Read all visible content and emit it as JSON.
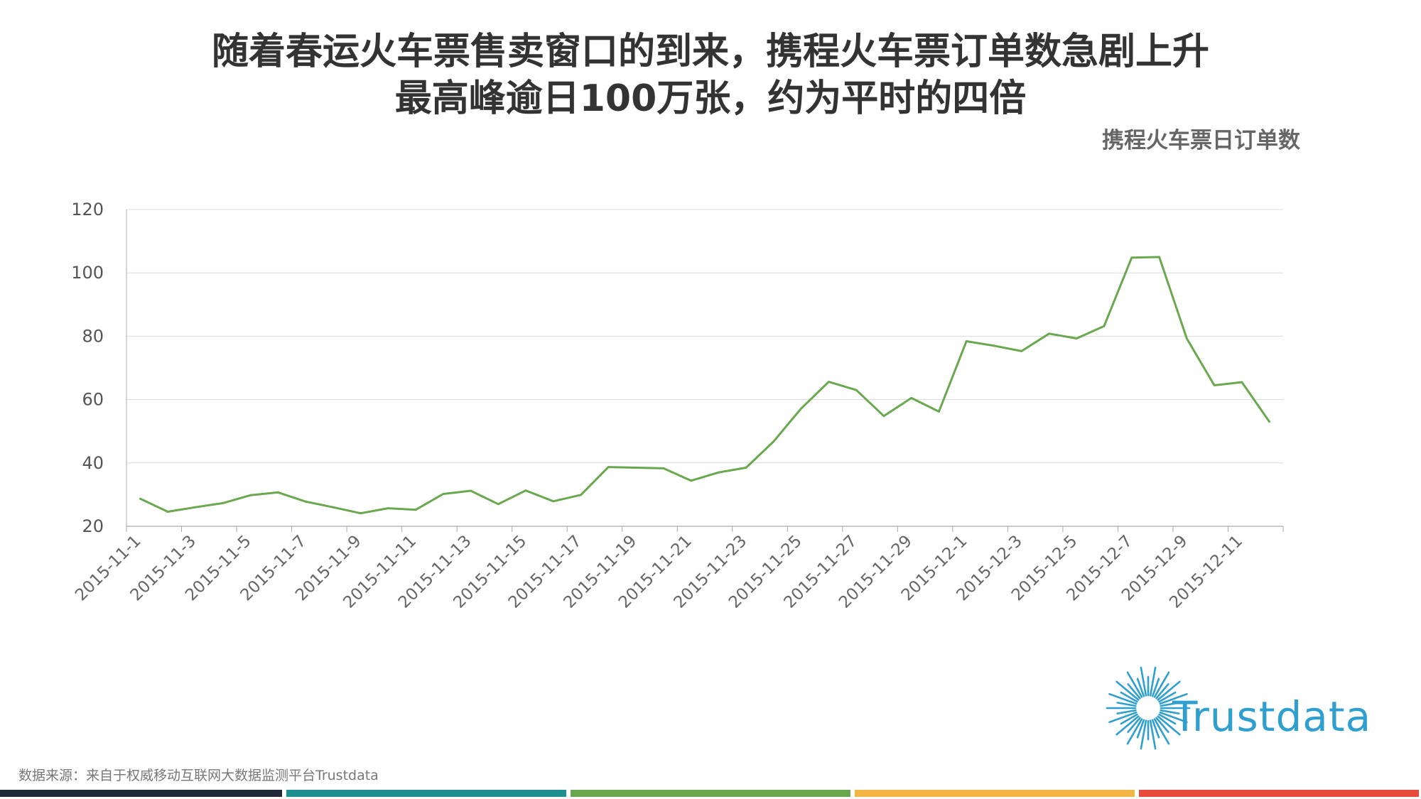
{
  "title": {
    "line1": "随着春运火车票售卖窗口的到来，携程火车票订单数急剧上升",
    "line2": "最高峰逾日100万张，约为平时的四倍"
  },
  "source": "数据来源：来自于权威移动互联网大数据监测平台Trustdata",
  "logo": {
    "text": "Trustdata",
    "color": "#2f9fd0"
  },
  "footer_colors": [
    "#1e2a3a",
    "#1f8e8f",
    "#6aa84f",
    "#f2b442",
    "#e64b3c"
  ],
  "chart_data": {
    "type": "line",
    "title": "携程火车票日订单数",
    "ylim": [
      20,
      120
    ],
    "yticks": [
      20,
      40,
      60,
      80,
      100,
      120
    ],
    "grid": true,
    "series_color": "#6aa84f",
    "xtick_labels": [
      "2015-11-1",
      "2015-11-3",
      "2015-11-5",
      "2015-11-7",
      "2015-11-9",
      "2015-11-11",
      "2015-11-13",
      "2015-11-15",
      "2015-11-17",
      "2015-11-19",
      "2015-11-21",
      "2015-11-23",
      "2015-11-25",
      "2015-11-27",
      "2015-11-29",
      "2015-12-1",
      "2015-12-3",
      "2015-12-5",
      "2015-12-7",
      "2015-12-9",
      "2015-12-11"
    ],
    "x": [
      "2015-11-1",
      "2015-11-2",
      "2015-11-3",
      "2015-11-4",
      "2015-11-5",
      "2015-11-6",
      "2015-11-7",
      "2015-11-8",
      "2015-11-9",
      "2015-11-10",
      "2015-11-11",
      "2015-11-12",
      "2015-11-13",
      "2015-11-14",
      "2015-11-15",
      "2015-11-16",
      "2015-11-17",
      "2015-11-18",
      "2015-11-19",
      "2015-11-20",
      "2015-11-21",
      "2015-11-22",
      "2015-11-23",
      "2015-11-24",
      "2015-11-25",
      "2015-11-26",
      "2015-11-27",
      "2015-11-28",
      "2015-11-29",
      "2015-11-30",
      "2015-12-1",
      "2015-12-2",
      "2015-12-3",
      "2015-12-4",
      "2015-12-5",
      "2015-12-6",
      "2015-12-7",
      "2015-12-8",
      "2015-12-9",
      "2015-12-10",
      "2015-12-11",
      "2015-12-12"
    ],
    "series": [
      {
        "values": [
          28.7,
          24.6,
          26.0,
          27.3,
          29.8,
          30.7,
          27.8,
          26.0,
          24.1,
          25.7,
          25.2,
          30.2,
          31.2,
          27.0,
          31.3,
          27.9,
          29.9,
          38.7,
          38.5,
          38.3,
          34.4,
          37.0,
          38.5,
          46.8,
          57.2,
          65.6,
          63.0,
          54.8,
          60.5,
          56.2,
          78.4,
          77.0,
          75.3,
          80.8,
          79.3,
          83.2,
          104.8,
          105.0,
          79.3,
          64.5,
          65.5,
          53.0
        ]
      }
    ]
  }
}
